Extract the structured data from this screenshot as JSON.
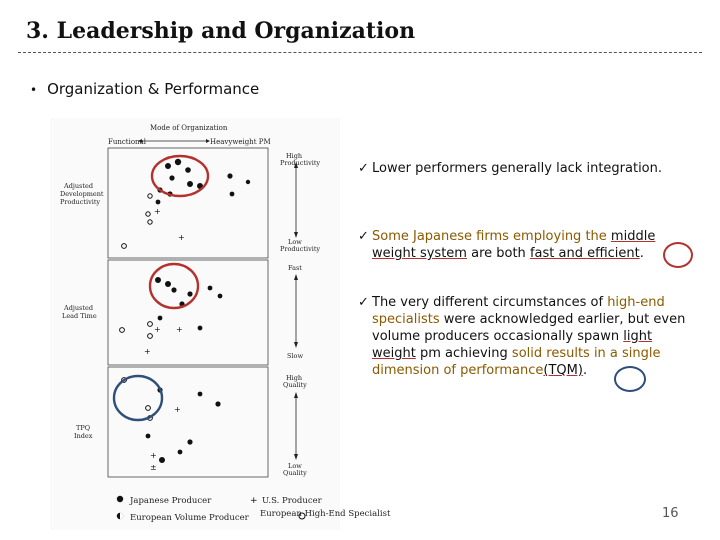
{
  "slide": {
    "title": "3. Leadership and Organization",
    "bullet": "Organization & Performance",
    "page_number": "16"
  },
  "figure": {
    "header": "Mode of Organization",
    "axis_left": "Functional",
    "axis_right": "Heavyweight PM",
    "panels": [
      {
        "label": "Adjusted Development Productivity",
        "top_label": "High Productivity",
        "bottom_label": "Low Productivity"
      },
      {
        "label": "Adjusted Lead Time",
        "top_label": "Fast",
        "bottom_label": "Slow"
      },
      {
        "label": "TPQ Index",
        "top_label": "High Quality",
        "bottom_label": "Low Quality"
      }
    ],
    "legend": {
      "japanese": "Japanese Producer",
      "us": "U.S. Producer",
      "european_volume": "European Volume Producer",
      "european_high_end": "European High-End Specialist"
    }
  },
  "points": [
    {
      "check": "✓",
      "text": "Lower performers generally lack integration."
    },
    {
      "check": "✓",
      "part1": "Some Japanese firms employing the ",
      "u1": "middle weight system",
      "part2": " are both ",
      "u2": "fast and efficient",
      "part3": "."
    },
    {
      "check": "✓",
      "part1": "The very different circumstances of ",
      "e1": "high-end specialists",
      "part2": " were acknowledged earlier, but even volume producers occasionally spawn ",
      "u1": "light weight",
      "part3": " pm achieving ",
      "e2": "solid results in a single dimension of performance",
      "u2": "(TQM)",
      "part4": "."
    }
  ]
}
